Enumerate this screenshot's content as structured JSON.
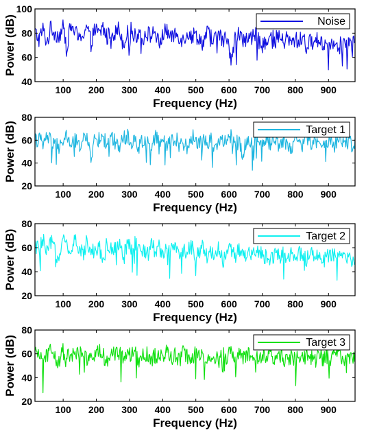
{
  "chart_data": [
    {
      "type": "line",
      "xlabel": "Frequency (Hz)",
      "ylabel": "Power (dB)",
      "xlim": [
        15,
        980
      ],
      "ylim": [
        40,
        100
      ],
      "xticks": [
        100,
        200,
        300,
        400,
        500,
        600,
        700,
        800,
        900
      ],
      "yticks": [
        40,
        60,
        80,
        100
      ],
      "grid": false,
      "legend_position": "top-right",
      "color": "#1010e0",
      "series": [
        {
          "name": "Noise",
          "sample_step": 12,
          "x_range": [
            15,
            980
          ],
          "values": [
            81,
            75,
            83,
            72,
            85,
            80,
            78,
            84,
            71,
            86,
            82,
            74,
            80,
            86,
            73,
            83,
            79,
            85,
            76,
            82,
            80,
            84,
            72,
            79,
            83,
            77,
            81,
            76,
            80,
            78,
            82,
            70,
            79,
            83,
            75,
            80,
            78,
            74,
            81,
            77,
            79,
            76,
            72,
            80,
            78,
            75,
            79,
            73,
            77,
            60,
            76,
            80,
            72,
            78,
            75,
            79,
            73,
            76,
            70,
            77,
            74,
            78,
            72,
            76,
            71,
            75,
            73,
            77,
            68,
            74,
            72,
            76,
            70,
            73,
            71,
            75,
            69,
            73,
            72,
            70,
            74
          ]
        }
      ]
    },
    {
      "type": "line",
      "xlabel": "Frequency (Hz)",
      "ylabel": "Power (dB)",
      "xlim": [
        15,
        980
      ],
      "ylim": [
        20,
        80
      ],
      "xticks": [
        100,
        200,
        300,
        400,
        500,
        600,
        700,
        800,
        900
      ],
      "yticks": [
        20,
        40,
        60,
        80
      ],
      "grid": false,
      "legend_position": "top-right",
      "color": "#1fb6e0",
      "series": [
        {
          "name": "Target 1",
          "sample_step": 12,
          "x_range": [
            15,
            980
          ],
          "values": [
            59,
            62,
            55,
            64,
            58,
            60,
            50,
            61,
            63,
            57,
            60,
            54,
            64,
            59,
            47,
            61,
            60,
            63,
            56,
            62,
            59,
            55,
            61,
            64,
            58,
            60,
            53,
            62,
            59,
            57,
            63,
            58,
            61,
            55,
            60,
            62,
            57,
            59,
            52,
            61,
            64,
            56,
            60,
            58,
            62,
            54,
            59,
            61,
            57,
            63,
            55,
            60,
            48,
            61,
            58,
            62,
            56,
            59,
            61,
            57,
            63,
            55,
            60,
            58,
            52,
            61,
            59,
            56,
            62,
            58,
            60,
            54,
            61,
            57,
            59,
            55,
            62,
            58,
            60,
            56,
            59
          ]
        }
      ]
    },
    {
      "type": "line",
      "xlabel": "Frequency (Hz)",
      "ylabel": "Power (dB)",
      "xlim": [
        15,
        980
      ],
      "ylim": [
        20,
        80
      ],
      "xticks": [
        100,
        200,
        300,
        400,
        500,
        600,
        700,
        800,
        900
      ],
      "yticks": [
        20,
        40,
        60,
        80
      ],
      "grid": false,
      "legend_position": "top-right",
      "color": "#10f0f0",
      "series": [
        {
          "name": "Target 2",
          "sample_step": 12,
          "x_range": [
            15,
            980
          ],
          "values": [
            62,
            58,
            66,
            55,
            64,
            60,
            52,
            67,
            61,
            57,
            65,
            59,
            54,
            66,
            60,
            56,
            63,
            48,
            64,
            58,
            61,
            66,
            55,
            62,
            59,
            64,
            57,
            60,
            53,
            63,
            58,
            61,
            55,
            62,
            57,
            60,
            51,
            59,
            56,
            61,
            54,
            58,
            60,
            52,
            57,
            55,
            59,
            50,
            56,
            58,
            53,
            57,
            54,
            56,
            51,
            55,
            57,
            52,
            54,
            50,
            56,
            53,
            55,
            49,
            54,
            52,
            56,
            50,
            53,
            55,
            51,
            54,
            49,
            53,
            52,
            55,
            50,
            54,
            52,
            51,
            53
          ]
        }
      ]
    },
    {
      "type": "line",
      "xlabel": "Frequency (Hz)",
      "ylabel": "Power (dB)",
      "xlim": [
        15,
        980
      ],
      "ylim": [
        20,
        80
      ],
      "xticks": [
        100,
        200,
        300,
        400,
        500,
        600,
        700,
        800,
        900
      ],
      "yticks": [
        20,
        40,
        60,
        80
      ],
      "grid": false,
      "legend_position": "top-right",
      "color": "#10e010",
      "series": [
        {
          "name": "Target 3",
          "sample_step": 12,
          "x_range": [
            15,
            980
          ],
          "values": [
            58,
            61,
            55,
            60,
            63,
            57,
            52,
            62,
            59,
            56,
            61,
            58,
            64,
            55,
            60,
            57,
            62,
            59,
            54,
            63,
            58,
            61,
            56,
            60,
            57,
            62,
            55,
            59,
            61,
            53,
            58,
            60,
            56,
            62,
            57,
            59,
            54,
            61,
            58,
            56,
            60,
            57,
            62,
            55,
            59,
            58,
            53,
            60,
            57,
            61,
            56,
            59,
            55,
            58,
            60,
            57,
            54,
            59,
            56,
            61,
            55,
            58,
            57,
            53,
            59,
            56,
            60,
            55,
            58,
            57,
            54,
            59,
            56,
            58,
            55,
            60,
            57,
            56,
            59,
            55,
            57
          ]
        }
      ]
    }
  ]
}
